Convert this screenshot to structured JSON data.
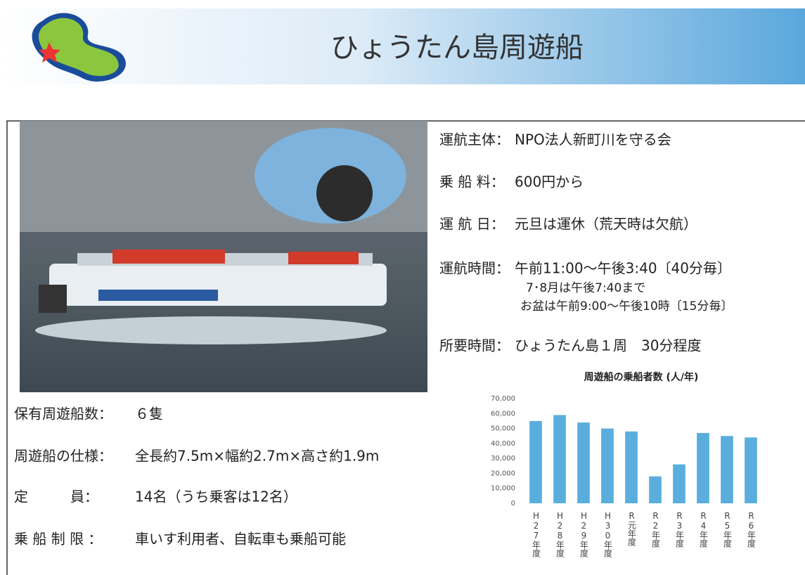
{
  "header": {
    "title": "ひょうたん島周遊船"
  },
  "operation": [
    {
      "label": "運航主体：",
      "value": "NPO法人新町川を守る会"
    },
    {
      "label": "乗 船 料：",
      "value": "600円から"
    },
    {
      "label": "運 航 日：",
      "value": "元旦は運休（荒天時は欠航）"
    },
    {
      "label": "運航時間：",
      "value": "午前11:00～午後3:40〔40分毎〕",
      "notes": [
        "7･8月は午後7:40まで",
        "お盆は午前9:00～午後10時〔15分毎〕"
      ]
    },
    {
      "label": "所要時間：",
      "value": "ひょうたん島１周　30分程度"
    }
  ],
  "boat": [
    {
      "label": "保有周遊船数：",
      "value": "６隻"
    },
    {
      "label": "周遊船の仕様：",
      "value": "全長約7.5m×幅約2.7m×高さ約1.9m"
    },
    {
      "label": "定　　　員：",
      "value": "14名（うち乗客は12名）"
    },
    {
      "label": "乗 船 制 限 ：",
      "value": "車いす利用者、自転車も乗船可能"
    }
  ],
  "chart_data": {
    "type": "bar",
    "title": "周遊船の乗船者数 (人/年)",
    "categories": [
      "H27年度",
      "H28年度",
      "H29年度",
      "H30年度",
      "R元年度",
      "R2年度",
      "R3年度",
      "R4年度",
      "R5年度",
      "R6年度"
    ],
    "values": [
      55000,
      59000,
      54000,
      50000,
      48000,
      18000,
      26000,
      47000,
      45000,
      44000
    ],
    "color": "#5aaede",
    "ylim": [
      0,
      70000
    ],
    "yticks": [
      0,
      {
        "value": 10000,
        "label": "10,000"
      },
      {
        "value": 20000,
        "label": "20,000"
      },
      {
        "value": 30000,
        "label": "30,000"
      },
      {
        "value": 40000,
        "label": "40,000"
      },
      {
        "value": 50000,
        "label": "50,000"
      },
      {
        "value": 60000,
        "label": "60,000"
      },
      {
        "value": 70000,
        "label": "70,000"
      }
    ],
    "grid": false
  }
}
